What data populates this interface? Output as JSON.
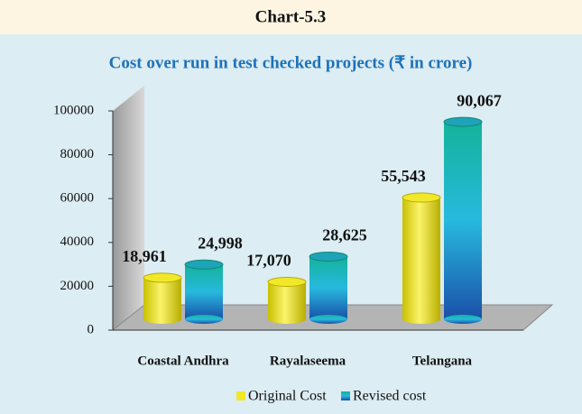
{
  "chart_data": {
    "type": "bar",
    "chart_label": "Chart-5.3",
    "title": "Cost over run in test checked projects (₹ in crore)",
    "categories": [
      "Coastal Andhra",
      "Rayalaseema",
      "Telangana"
    ],
    "series": [
      {
        "name": "Original Cost",
        "color": "#f2e82a",
        "values": [
          18961,
          17070,
          55543
        ],
        "value_labels": [
          "18,961",
          "17,070",
          "55,543"
        ]
      },
      {
        "name": "Revised cost",
        "color": "#1fa3b8",
        "values": [
          24998,
          28625,
          90067
        ],
        "value_labels": [
          "24,998",
          "28,625",
          "90,067"
        ]
      }
    ],
    "ylim": [
      0,
      100000
    ],
    "yticks": [
      0,
      20000,
      40000,
      60000,
      80000,
      100000
    ],
    "legend": "bottom"
  }
}
